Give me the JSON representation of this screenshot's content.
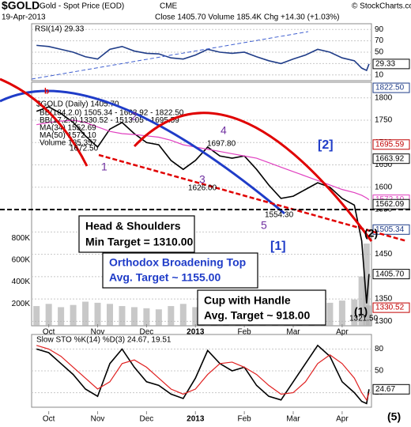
{
  "header": {
    "symbol": "$GOLD",
    "name": "Gold - Spot Price (EOD)",
    "exchange": "CME",
    "date": "19-Apr-2013",
    "stats": "Close 1405.70  Volume 185.4K  Chg +14.30 (+1.03%)",
    "credit": "© StockCharts.com"
  },
  "annotations": {
    "b": "b",
    "w1": "1",
    "w2": "2",
    "w3": "3",
    "w4": "4",
    "w5": "5",
    "p2": "(2)",
    "p1": "(1)",
    "p5": "(5)",
    "s2": "[2]",
    "s1": "[1]",
    "l1": "1672.50",
    "l2": "1697.80",
    "l3": "1626.00",
    "l4": "1554.30",
    "l5": "1321.50",
    "hs1": "Head & Shoulders",
    "hs2": "Min Target = 1310.00",
    "ob1": "Orthodox Broadening Top",
    "ob2": "Avg. Target ~ 1155.00",
    "cup1": "Cup with Handle",
    "cup2": "Avg. Target ~ 918.00"
  },
  "chart_data": [
    {
      "type": "line",
      "title": "RSI(14) 29.33",
      "ylim": [
        0,
        100
      ],
      "yticks": [
        10,
        30,
        50,
        70,
        90
      ],
      "series": [
        {
          "name": "RSI",
          "color": "#1f3c88",
          "values": [
            62,
            60,
            55,
            50,
            42,
            38,
            55,
            60,
            52,
            48,
            47,
            40,
            38,
            45,
            55,
            50,
            48,
            50,
            42,
            35,
            30,
            38,
            45,
            55,
            50,
            40,
            35,
            22,
            18,
            29.33
          ]
        }
      ],
      "tag": {
        "value": 29.33,
        "label": "29.33"
      }
    },
    {
      "type": "line",
      "title": "$GOLD (Daily) 1405.70",
      "legend": [
        "BB(184,2.0) 1505.34 - 1663.92 - 1822.50",
        "BB(17,2.0) 1330.52 - 1513.05 - 1695.59",
        "MA(34) 1552.69",
        "MA(50) 1572.10",
        "Volume 185,357"
      ],
      "x": [
        -0.25,
        0,
        0.25,
        0.5,
        0.75,
        1,
        1.25,
        1.5,
        1.75,
        2,
        2.25,
        2.5,
        2.75,
        3,
        3.25,
        3.5,
        3.75,
        4,
        4.25,
        4.5,
        4.75,
        5,
        5.25,
        5.5,
        5.75,
        6,
        6.25,
        6.4,
        6.5,
        6.55
      ],
      "xlim": [
        -0.35,
        6.6
      ],
      "xticks": [
        {
          "value": 0,
          "label": "Oct"
        },
        {
          "value": 1,
          "label": "Nov"
        },
        {
          "value": 2,
          "label": "Dec"
        },
        {
          "value": 3,
          "label": "2013"
        },
        {
          "value": 4,
          "label": "Feb"
        },
        {
          "value": 5,
          "label": "Mar"
        },
        {
          "value": 6,
          "label": "Apr"
        }
      ],
      "ylim": [
        1290,
        1835
      ],
      "yticks": [
        1300,
        1350,
        1400,
        1450,
        1500,
        1550,
        1600,
        1650,
        1700,
        1750,
        1800
      ],
      "series": [
        {
          "name": "Price",
          "color": "#000000",
          "values": [
            1770,
            1780,
            1765,
            1745,
            1715,
            1690,
            1730,
            1745,
            1720,
            1700,
            1695,
            1660,
            1640,
            1660,
            1690,
            1670,
            1665,
            1670,
            1640,
            1605,
            1575,
            1580,
            1595,
            1610,
            1600,
            1575,
            1560,
            1480,
            1340,
            1405.7
          ]
        },
        {
          "name": "MA(50)",
          "color": "#e040c0",
          "values": [
            1740,
            1745,
            1748,
            1750,
            1745,
            1735,
            1725,
            1720,
            1718,
            1715,
            1712,
            1705,
            1695,
            1690,
            1685,
            1680,
            1675,
            1670,
            1665,
            1655,
            1645,
            1635,
            1625,
            1615,
            1605,
            1595,
            1588,
            1582,
            1576,
            1572.1
          ]
        }
      ],
      "volume": {
        "color": "#b0b0b0",
        "vlim": [
          0,
          1000000
        ],
        "vticks": [
          {
            "value": 200000,
            "label": "200K"
          },
          {
            "value": 400000,
            "label": "400K"
          },
          {
            "value": 600000,
            "label": "600K"
          },
          {
            "value": 800000,
            "label": "800K"
          }
        ],
        "values": [
          180000,
          200000,
          170000,
          190000,
          220000,
          210000,
          200000,
          180000,
          170000,
          160000,
          150000,
          180000,
          200000,
          170000,
          190000,
          160000,
          150000,
          180000,
          220000,
          250000,
          260000,
          210000,
          200000,
          190000,
          210000,
          230000,
          240000,
          450000,
          750000,
          185357
        ]
      },
      "tags": [
        {
          "value": 1822.5,
          "label": "1822.50",
          "color": "#1f3c88"
        },
        {
          "value": 1695.59,
          "label": "1695.59",
          "color": "#c00000"
        },
        {
          "value": 1663.92,
          "label": "1663.92",
          "color": "#000000"
        },
        {
          "value": 1572.1,
          "label": "1572.10",
          "color": "#e040c0"
        },
        {
          "value": 1562.09,
          "label": "1562.09",
          "color": "#000000"
        },
        {
          "value": 1505.34,
          "label": "1505.34",
          "color": "#1f3c88"
        },
        {
          "value": 1405.7,
          "label": "1405.70",
          "color": "#000000"
        },
        {
          "value": 1330.52,
          "label": "1330.52",
          "color": "#c00000"
        }
      ]
    },
    {
      "type": "line",
      "title": "Slow STO %K(14) %D(3) 24.67, 19.51",
      "ylim": [
        0,
        100
      ],
      "yticks": [
        20,
        50,
        80
      ],
      "series": [
        {
          "name": "%K",
          "color": "#000000",
          "values": [
            80,
            75,
            60,
            45,
            25,
            15,
            60,
            80,
            55,
            35,
            30,
            18,
            12,
            40,
            78,
            60,
            50,
            55,
            30,
            15,
            10,
            35,
            60,
            85,
            70,
            35,
            20,
            8,
            5,
            24.67
          ]
        },
        {
          "name": "%D",
          "color": "#e02020",
          "values": [
            85,
            80,
            70,
            55,
            40,
            25,
            35,
            60,
            65,
            55,
            40,
            25,
            18,
            25,
            45,
            60,
            62,
            55,
            45,
            30,
            18,
            20,
            35,
            60,
            72,
            60,
            40,
            20,
            10,
            19.51
          ]
        }
      ],
      "tag": {
        "value": 24.67,
        "label": "24.67"
      }
    }
  ]
}
